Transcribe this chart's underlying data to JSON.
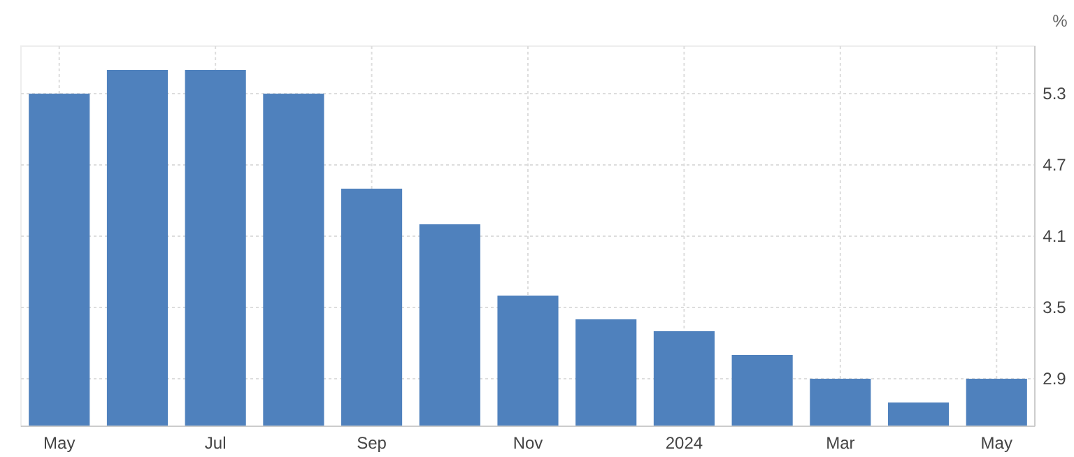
{
  "chart_data": {
    "type": "bar",
    "ylabel": "%",
    "categories": [
      "May",
      null,
      "Jul",
      null,
      "Sep",
      null,
      "Nov",
      null,
      "2024",
      null,
      "Mar",
      null,
      "May"
    ],
    "values": [
      5.3,
      5.5,
      5.5,
      5.3,
      4.5,
      4.2,
      3.6,
      3.4,
      3.3,
      3.1,
      2.9,
      2.7,
      2.9
    ],
    "color": "#4f81bd",
    "ylim": [
      2.5,
      5.7
    ],
    "yticks": [
      2.9,
      3.5,
      4.1,
      4.7,
      5.3
    ],
    "grid": true
  }
}
